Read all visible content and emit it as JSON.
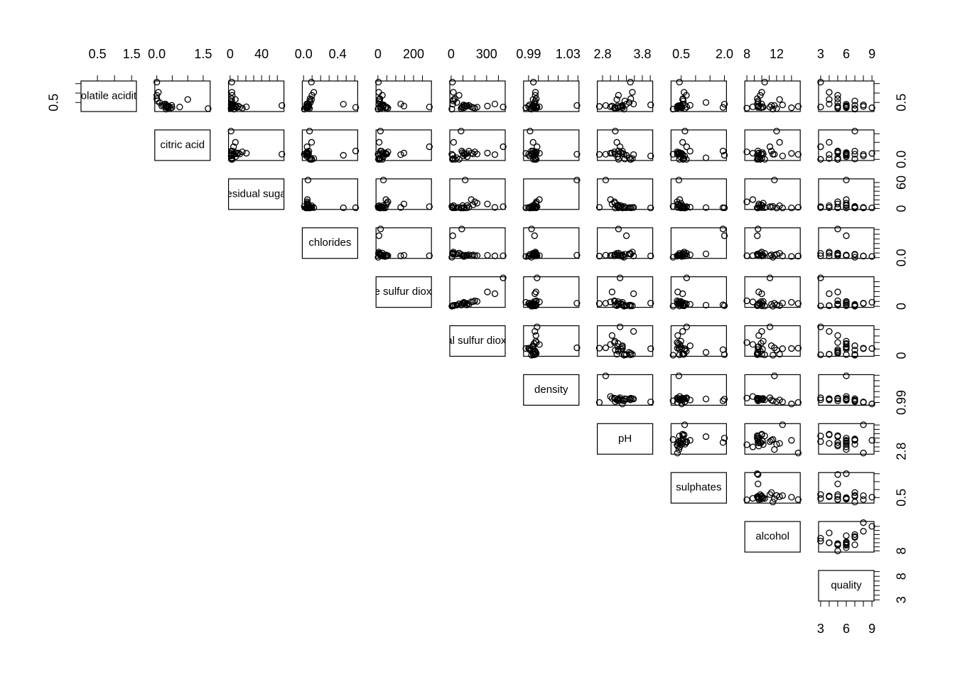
{
  "chart_data": {
    "type": "scatter-matrix",
    "variables": [
      {
        "name": "volatile acidity",
        "lim": [
          0.08,
          1.58
        ],
        "ticks": [
          0.5,
          {
            "value": 1,
            "label": "1.0"
          },
          1.5
        ]
      },
      {
        "name": "citric acid",
        "lim": [
          0,
          1.66
        ],
        "ticks": [
          {
            "value": 0,
            "label": "0.0"
          },
          0.5,
          {
            "value": 1,
            "label": "1.0"
          },
          1.5
        ]
      },
      {
        "name": "residual sugar",
        "lim": [
          0.6,
          65.8
        ],
        "ticks": [
          0,
          10,
          20,
          30,
          40,
          50,
          60
        ]
      },
      {
        "name": "chlorides",
        "lim": [
          0.009,
          0.611
        ],
        "ticks": [
          {
            "value": 0,
            "label": "0.0"
          },
          0.1,
          0.2,
          0.3,
          0.4,
          0.5,
          0.6
        ]
      },
      {
        "name": "free sulfur dioxide",
        "lim": [
          1,
          289
        ],
        "ticks": [
          0,
          50,
          100,
          150,
          200,
          250
        ]
      },
      {
        "name": "total sulfur dioxide",
        "lim": [
          6,
          440
        ],
        "ticks": [
          0,
          100,
          200,
          300,
          400
        ]
      },
      {
        "name": "density",
        "lim": [
          0.987,
          1.039
        ],
        "ticks": [
          0.99,
          {
            "value": 1,
            "label": "1.00"
          },
          1.01,
          1.02,
          1.03,
          1.04
        ]
      },
      {
        "name": "pH",
        "lim": [
          2.72,
          4.01
        ],
        "ticks": [
          2.8,
          {
            "value": 3,
            "label": "3.0"
          },
          3.2,
          3.4,
          3.6,
          3.8,
          {
            "value": 4,
            "label": "4.0"
          }
        ]
      },
      {
        "name": "sulphates",
        "lim": [
          0.22,
          2.0
        ],
        "ticks": [
          0.5,
          {
            "value": 1,
            "label": "1.0"
          },
          1.5,
          {
            "value": 2,
            "label": "2.0"
          }
        ]
      },
      {
        "name": "alcohol",
        "lim": [
          8,
          14.9
        ],
        "ticks": [
          8,
          9,
          10,
          11,
          12,
          13,
          14
        ]
      },
      {
        "name": "quality",
        "lim": [
          3,
          9
        ],
        "ticks": [
          3,
          4,
          5,
          6,
          7,
          8,
          9
        ]
      }
    ],
    "observations": [
      [
        0.7,
        0.0,
        1.9,
        0.076,
        11,
        34,
        0.9978,
        3.51,
        0.56,
        9.4,
        5
      ],
      [
        0.27,
        0.36,
        20.7,
        0.045,
        45,
        170,
        1.001,
        3.0,
        0.45,
        8.8,
        6
      ],
      [
        0.3,
        0.34,
        1.6,
        0.049,
        14,
        132,
        0.994,
        3.3,
        0.49,
        9.5,
        6
      ],
      [
        0.28,
        0.4,
        6.9,
        0.05,
        30,
        97,
        0.9951,
        3.26,
        0.44,
        10.1,
        6
      ],
      [
        0.23,
        0.32,
        8.5,
        0.058,
        47,
        186,
        0.9956,
        3.19,
        0.4,
        9.9,
        6
      ],
      [
        0.32,
        0.16,
        7.0,
        0.045,
        30,
        136,
        0.9949,
        3.18,
        0.47,
        9.6,
        6
      ],
      [
        0.88,
        0.0,
        2.6,
        0.098,
        25,
        67,
        0.9968,
        3.2,
        0.68,
        9.8,
        5
      ],
      [
        0.58,
        0.02,
        2.0,
        0.073,
        9,
        18,
        0.9968,
        3.36,
        0.57,
        9.5,
        7
      ],
      [
        1.58,
        0.0,
        2.1,
        0.092,
        3,
        11,
        0.9949,
        3.5,
        0.44,
        10.4,
        3
      ],
      [
        0.66,
        1.0,
        6.7,
        0.094,
        7,
        21,
        0.9946,
        3.16,
        0.55,
        12.4,
        4
      ],
      [
        0.18,
        1.66,
        1.2,
        0.07,
        14,
        84,
        0.9915,
        3.12,
        0.63,
        12.0,
        7
      ],
      [
        0.34,
        0.3,
        65.8,
        0.052,
        31,
        119,
        1.039,
        2.88,
        0.42,
        11.7,
        6
      ],
      [
        0.24,
        0.49,
        1.9,
        0.611,
        15,
        90,
        0.993,
        3.2,
        1.95,
        9.5,
        5
      ],
      [
        0.41,
        0.24,
        1.8,
        0.467,
        6,
        14,
        0.9961,
        3.4,
        2.0,
        9.4,
        6
      ],
      [
        0.26,
        0.74,
        4.4,
        0.041,
        289,
        440,
        0.9986,
        3.24,
        0.69,
        11.1,
        3
      ],
      [
        0.31,
        0.37,
        10.5,
        0.05,
        146,
        307,
        0.9975,
        3.04,
        0.38,
        9.6,
        5
      ],
      [
        0.42,
        0.28,
        2.7,
        0.038,
        128,
        370,
        0.9964,
        3.58,
        0.55,
        10.0,
        4
      ],
      [
        0.25,
        0.31,
        12.4,
        0.044,
        50,
        220,
        0.9973,
        3.11,
        0.49,
        10.2,
        6
      ],
      [
        0.37,
        0.2,
        1.4,
        0.036,
        32,
        105,
        0.991,
        4.01,
        0.62,
        12.8,
        8
      ],
      [
        0.22,
        0.35,
        1.5,
        0.026,
        41,
        108,
        0.9873,
        3.3,
        0.52,
        14.0,
        9
      ],
      [
        0.29,
        0.29,
        2.8,
        0.034,
        28,
        113,
        0.99,
        2.72,
        0.37,
        14.9,
        8
      ],
      [
        0.5,
        0.09,
        2.2,
        0.08,
        12,
        48,
        0.9964,
        3.47,
        1.36,
        9.5,
        5
      ],
      [
        0.2,
        0.44,
        15.6,
        0.042,
        56,
        200,
        0.998,
        3.1,
        0.36,
        8.0,
        5
      ],
      [
        0.35,
        0.48,
        3.1,
        0.062,
        20,
        150,
        0.9944,
        3.3,
        0.81,
        11.3,
        7
      ],
      [
        0.15,
        0.3,
        5.0,
        0.009,
        1,
        6,
        0.993,
        3.34,
        0.22,
        11.5,
        7
      ],
      [
        1.04,
        0.05,
        2.3,
        0.12,
        5,
        19,
        0.997,
        3.55,
        0.6,
        10.0,
        4
      ]
    ]
  }
}
